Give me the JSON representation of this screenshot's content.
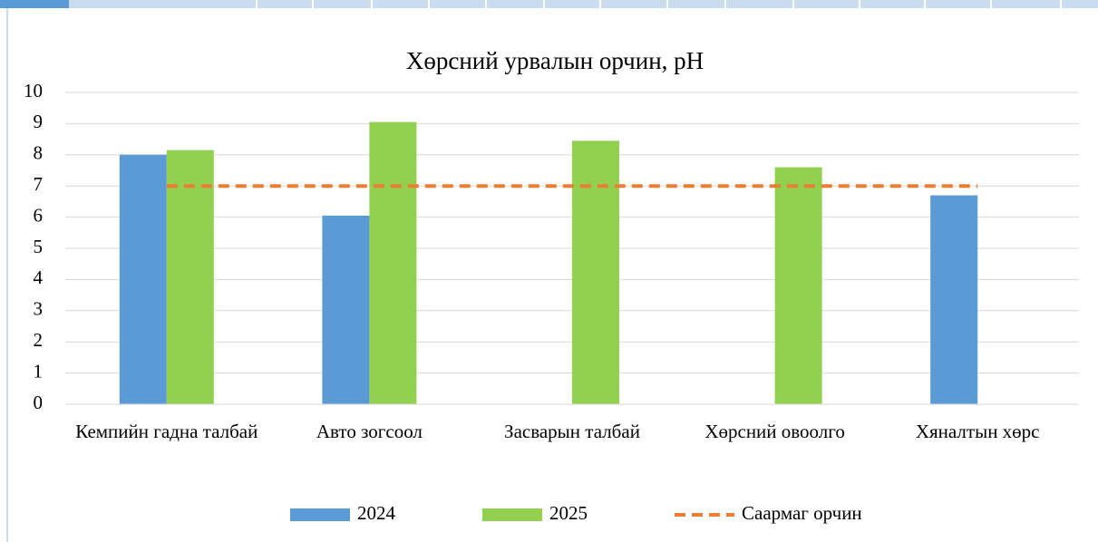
{
  "chart_data": {
    "type": "bar",
    "title": "Хөрсний урвалын орчин, pH",
    "categories": [
      "Кемпийн гадна талбай",
      "Авто зогсоол",
      "Засварын талбай",
      "Хөрсний овоолго",
      "Хяналтын хөрс"
    ],
    "series": [
      {
        "name": "2024",
        "color": "#5b9bd5",
        "values": [
          8.0,
          6.05,
          null,
          null,
          6.7
        ]
      },
      {
        "name": "2025",
        "color": "#92d050",
        "values": [
          8.15,
          9.05,
          8.45,
          7.6,
          null
        ]
      },
      {
        "name": "Саармаг орчин",
        "color": "#ed7d31",
        "type": "line",
        "style": "dashed",
        "values": [
          7,
          7,
          7,
          7,
          7
        ]
      }
    ],
    "ylim": [
      0,
      10
    ],
    "yticks": [
      0,
      1,
      2,
      3,
      4,
      5,
      6,
      7,
      8,
      9,
      10
    ],
    "grid": true,
    "legend": "bottom"
  }
}
